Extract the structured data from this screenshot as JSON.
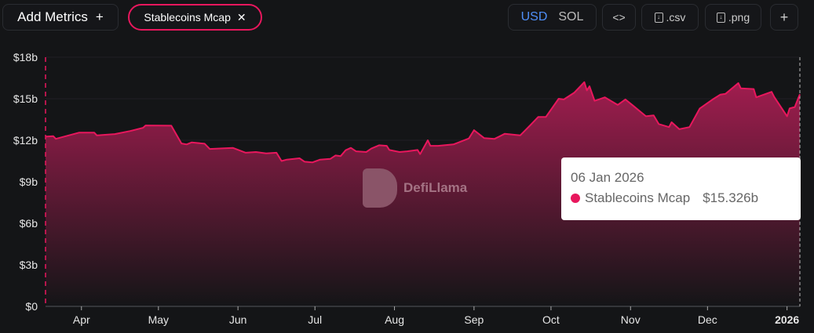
{
  "toolbar": {
    "add_metrics": "Add Metrics",
    "add_icon": "+",
    "chip_label": "Stablecoins Mcap",
    "chip_close": "✕",
    "currency": [
      "USD",
      "SOL"
    ],
    "currency_selected": "USD",
    "embed": "<>",
    "csv": ".csv",
    "png": ".png",
    "plus": "+"
  },
  "watermark": "DefiLlama",
  "tooltip": {
    "date": "06 Jan 2026",
    "series": "Stablecoins Mcap",
    "value": "$15.326b"
  },
  "colors": {
    "line": "#e8175d",
    "fill_top": "#a11d4f",
    "background": "#141517",
    "accent": "#4f8ff7"
  },
  "chart_data": {
    "type": "area",
    "title": "",
    "xlabel": "",
    "ylabel": "",
    "ylim": [
      0,
      18
    ],
    "y_unit": "billion USD",
    "y_ticks": [
      "$0",
      "$3b",
      "$6b",
      "$9b",
      "$12b",
      "$15b",
      "$18b"
    ],
    "x_ticks": [
      {
        "date": "2025-04-01",
        "label": "Apr"
      },
      {
        "date": "2025-05-01",
        "label": "May"
      },
      {
        "date": "2025-06-01",
        "label": "Jun"
      },
      {
        "date": "2025-07-01",
        "label": "Jul"
      },
      {
        "date": "2025-08-01",
        "label": "Aug"
      },
      {
        "date": "2025-09-01",
        "label": "Sep"
      },
      {
        "date": "2025-10-01",
        "label": "Oct"
      },
      {
        "date": "2025-11-01",
        "label": "Nov"
      },
      {
        "date": "2025-12-01",
        "label": "Dec"
      },
      {
        "date": "2026-01-01",
        "label": "2026"
      }
    ],
    "xlim": [
      "2025-03-18",
      "2026-01-06"
    ],
    "grid": true,
    "series": [
      {
        "name": "Stablecoins Mcap",
        "points": [
          [
            "2025-03-18",
            12.26
          ],
          [
            "2025-03-21",
            12.3
          ],
          [
            "2025-03-22",
            12.1
          ],
          [
            "2025-03-31",
            12.55
          ],
          [
            "2025-04-06",
            12.55
          ],
          [
            "2025-04-07",
            12.35
          ],
          [
            "2025-04-14",
            12.45
          ],
          [
            "2025-04-20",
            12.67
          ],
          [
            "2025-04-25",
            12.9
          ],
          [
            "2025-04-26",
            13.07
          ],
          [
            "2025-05-06",
            13.05
          ],
          [
            "2025-05-10",
            11.77
          ],
          [
            "2025-05-12",
            11.7
          ],
          [
            "2025-05-14",
            11.85
          ],
          [
            "2025-05-19",
            11.75
          ],
          [
            "2025-05-21",
            11.37
          ],
          [
            "2025-05-30",
            11.45
          ],
          [
            "2025-06-04",
            11.1
          ],
          [
            "2025-06-08",
            11.15
          ],
          [
            "2025-06-12",
            11.05
          ],
          [
            "2025-06-16",
            11.1
          ],
          [
            "2025-06-18",
            10.5
          ],
          [
            "2025-06-20",
            10.6
          ],
          [
            "2025-06-25",
            10.7
          ],
          [
            "2025-06-27",
            10.45
          ],
          [
            "2025-06-30",
            10.4
          ],
          [
            "2025-07-03",
            10.6
          ],
          [
            "2025-07-07",
            10.65
          ],
          [
            "2025-07-09",
            10.9
          ],
          [
            "2025-07-11",
            10.85
          ],
          [
            "2025-07-13",
            11.28
          ],
          [
            "2025-07-15",
            11.45
          ],
          [
            "2025-07-17",
            11.2
          ],
          [
            "2025-07-21",
            11.15
          ],
          [
            "2025-07-23",
            11.4
          ],
          [
            "2025-07-26",
            11.64
          ],
          [
            "2025-07-29",
            11.6
          ],
          [
            "2025-07-30",
            11.3
          ],
          [
            "2025-08-03",
            11.15
          ],
          [
            "2025-08-06",
            11.2
          ],
          [
            "2025-08-10",
            11.3
          ],
          [
            "2025-08-11",
            11.0
          ],
          [
            "2025-08-14",
            12.0
          ],
          [
            "2025-08-15",
            11.6
          ],
          [
            "2025-08-18",
            11.6
          ],
          [
            "2025-08-24",
            11.7
          ],
          [
            "2025-08-30",
            12.13
          ],
          [
            "2025-09-01",
            12.73
          ],
          [
            "2025-09-05",
            12.15
          ],
          [
            "2025-09-09",
            12.1
          ],
          [
            "2025-09-13",
            12.47
          ],
          [
            "2025-09-19",
            12.35
          ],
          [
            "2025-09-23",
            13.1
          ],
          [
            "2025-09-26",
            13.68
          ],
          [
            "2025-09-29",
            13.68
          ],
          [
            "2025-10-04",
            15.0
          ],
          [
            "2025-10-06",
            14.95
          ],
          [
            "2025-10-10",
            15.43
          ],
          [
            "2025-10-14",
            16.2
          ],
          [
            "2025-10-15",
            15.6
          ],
          [
            "2025-10-16",
            15.9
          ],
          [
            "2025-10-18",
            14.85
          ],
          [
            "2025-10-22",
            15.1
          ],
          [
            "2025-10-27",
            14.55
          ],
          [
            "2025-10-30",
            14.95
          ],
          [
            "2025-11-02",
            14.5
          ],
          [
            "2025-11-07",
            13.73
          ],
          [
            "2025-11-10",
            13.8
          ],
          [
            "2025-11-12",
            13.17
          ],
          [
            "2025-11-16",
            12.95
          ],
          [
            "2025-11-17",
            13.3
          ],
          [
            "2025-11-20",
            12.8
          ],
          [
            "2025-11-24",
            12.95
          ],
          [
            "2025-11-28",
            14.3
          ],
          [
            "2025-12-03",
            14.95
          ],
          [
            "2025-12-06",
            15.3
          ],
          [
            "2025-12-08",
            15.35
          ],
          [
            "2025-12-13",
            16.13
          ],
          [
            "2025-12-14",
            15.75
          ],
          [
            "2025-12-19",
            15.7
          ],
          [
            "2025-12-20",
            15.1
          ],
          [
            "2025-12-26",
            15.5
          ],
          [
            "2025-12-27",
            15.13
          ],
          [
            "2026-01-01",
            13.73
          ],
          [
            "2026-01-02",
            14.3
          ],
          [
            "2026-01-04",
            14.4
          ],
          [
            "2026-01-06",
            15.326
          ]
        ]
      }
    ]
  }
}
